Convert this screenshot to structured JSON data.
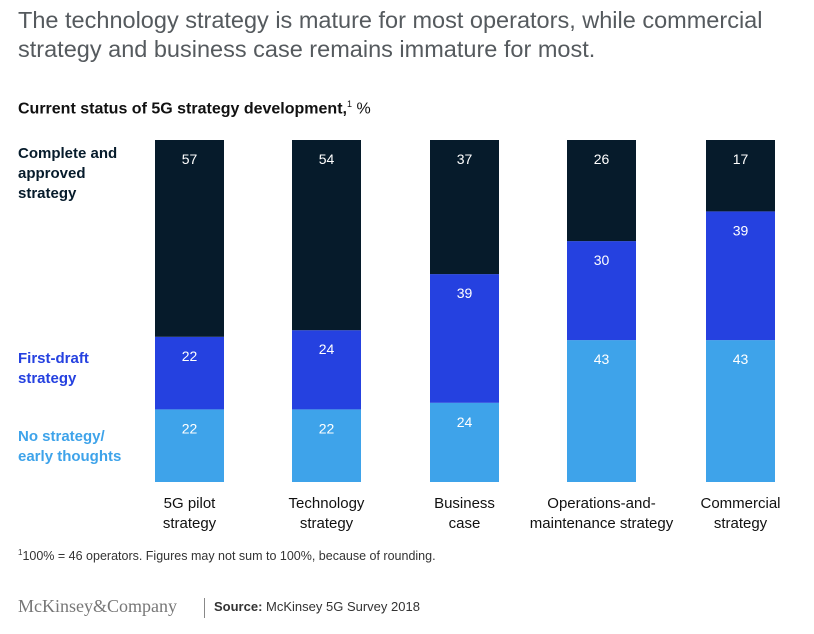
{
  "title": "The technology strategy is mature for most operators, while commercial strategy and business case remains immature for most.",
  "subtitle": "Current status of 5G strategy development,",
  "subtitle_sup": "1",
  "subtitle_unit": "%",
  "legend": {
    "dark": [
      "Complete and",
      "approved",
      "strategy"
    ],
    "blue": [
      "First-draft",
      "strategy"
    ],
    "light": [
      "No strategy/",
      "early thoughts"
    ]
  },
  "colors": {
    "dark": "#061b2b",
    "blue": "#2541e0",
    "light": "#3ea3ea"
  },
  "chart_data": {
    "type": "bar",
    "stacked": true,
    "categories": [
      [
        "5G pilot",
        "strategy"
      ],
      [
        "Technology",
        "strategy"
      ],
      [
        "Business",
        "case"
      ],
      [
        "Operations-and-",
        "maintenance strategy"
      ],
      [
        "Commercial",
        "strategy"
      ]
    ],
    "series": [
      {
        "name": "No strategy/early thoughts",
        "color": "#3ea3ea",
        "values": [
          22,
          22,
          24,
          43,
          43
        ]
      },
      {
        "name": "First-draft strategy",
        "color": "#2541e0",
        "values": [
          22,
          24,
          39,
          30,
          39
        ]
      },
      {
        "name": "Complete and approved strategy",
        "color": "#061b2b",
        "values": [
          57,
          54,
          37,
          26,
          17
        ]
      }
    ],
    "unit": "%"
  },
  "footnote_sup": "1",
  "footnote": "100% = 46 operators. Figures may not sum to 100%, because of rounding.",
  "brand": "McKinsey&Company",
  "source_label": "Source:",
  "source_text": "McKinsey 5G Survey 2018"
}
